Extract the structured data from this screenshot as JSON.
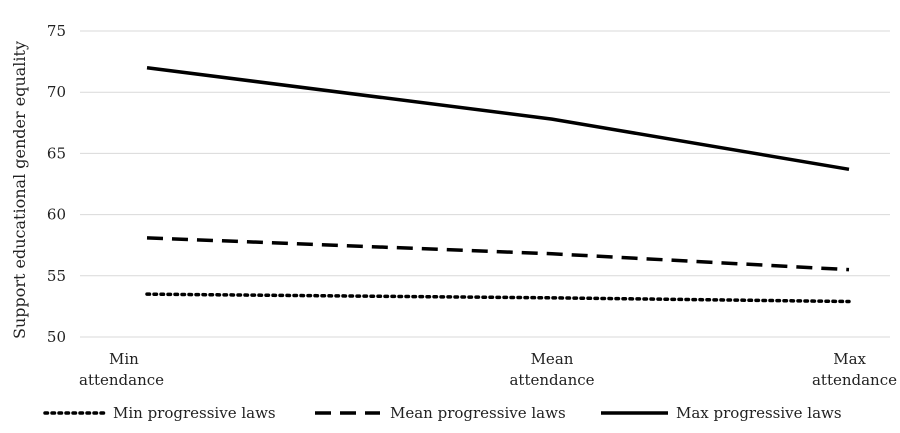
{
  "chart_data": {
    "type": "line",
    "categories": [
      "Min attendance",
      "Mean attendance",
      "Max attendance"
    ],
    "x_tick_labels": [
      [
        "Min",
        "attendance"
      ],
      [
        "Mean",
        "attendance"
      ],
      [
        "Max",
        "attendance"
      ]
    ],
    "ylabel": "Support educational gender equality",
    "ylim": [
      50,
      75
    ],
    "yticks": [
      50,
      55,
      60,
      65,
      70,
      75
    ],
    "grid": true,
    "legend_position": "bottom",
    "series": [
      {
        "name": "Min progressive laws",
        "values": [
          53.5,
          53.2,
          52.9
        ],
        "style": "dotted",
        "color": "#000000"
      },
      {
        "name": "Mean progressive laws",
        "values": [
          58.1,
          56.8,
          55.5
        ],
        "style": "dashed",
        "color": "#000000"
      },
      {
        "name": "Max progressive laws",
        "values": [
          72.0,
          67.8,
          63.7
        ],
        "style": "solid",
        "color": "#000000"
      }
    ]
  }
}
